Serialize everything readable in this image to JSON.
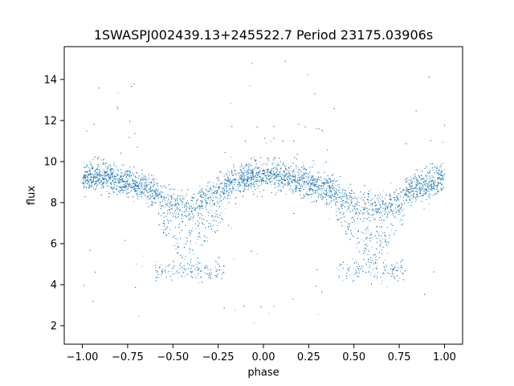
{
  "chart_data": {
    "type": "scatter",
    "title": "1SWASPJ002439.13+245522.7 Period 23175.03906s",
    "xlabel": "phase",
    "ylabel": "flux",
    "xlim": [
      -1.1,
      1.1
    ],
    "ylim": [
      1.1,
      15.6
    ],
    "x_ticks": [
      -1.0,
      -0.75,
      -0.5,
      -0.25,
      0.0,
      0.25,
      0.5,
      0.75,
      1.0
    ],
    "x_tick_labels": [
      "−1.00",
      "−0.75",
      "−0.50",
      "−0.25",
      "0.00",
      "0.25",
      "0.50",
      "0.75",
      "1.00"
    ],
    "y_ticks": [
      2,
      4,
      6,
      8,
      10,
      12,
      14
    ],
    "y_tick_labels": [
      "2",
      "4",
      "6",
      "8",
      "10",
      "12",
      "14"
    ],
    "grid": false,
    "marker_color": "#1f77b4",
    "upper_envelope": [
      {
        "phase": -1.0,
        "flux": 9.2
      },
      {
        "phase": -0.9,
        "flux": 9.3
      },
      {
        "phase": -0.75,
        "flux": 9.0
      },
      {
        "phase": -0.6,
        "flux": 8.6
      },
      {
        "phase": -0.5,
        "flux": 8.0
      },
      {
        "phase": -0.42,
        "flux": 7.7
      },
      {
        "phase": -0.35,
        "flux": 8.1
      },
      {
        "phase": -0.25,
        "flux": 8.7
      },
      {
        "phase": -0.1,
        "flux": 9.2
      },
      {
        "phase": 0.05,
        "flux": 9.4
      },
      {
        "phase": 0.25,
        "flux": 9.0
      },
      {
        "phase": 0.4,
        "flux": 8.5
      },
      {
        "phase": 0.5,
        "flux": 8.0
      },
      {
        "phase": 0.6,
        "flux": 7.7
      },
      {
        "phase": 0.7,
        "flux": 8.0
      },
      {
        "phase": 0.8,
        "flux": 8.6
      },
      {
        "phase": 1.0,
        "flux": 9.2
      }
    ],
    "eclipse_floor": [
      {
        "phase_start": -0.6,
        "phase_end": -0.22,
        "flux": 4.7
      },
      {
        "phase_start": 0.4,
        "phase_end": 0.78,
        "flux": 4.7
      }
    ],
    "plateau_level": 7.3
  }
}
